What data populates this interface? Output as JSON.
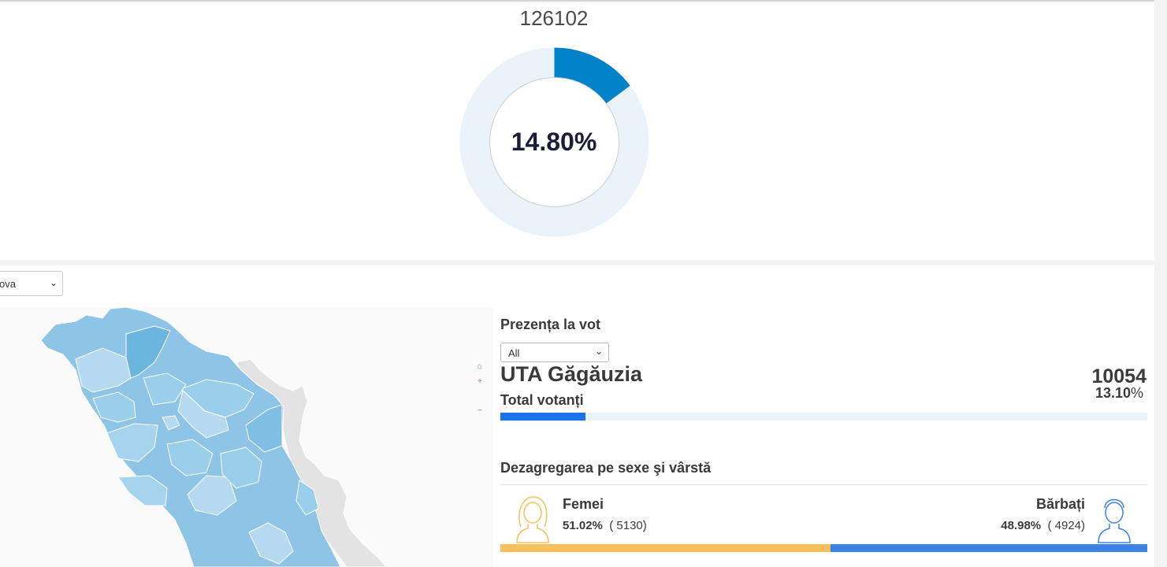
{
  "turnout": {
    "total_count": "126102",
    "percent_label": "14.80%",
    "percent_value": 14.8,
    "colors": {
      "fill": "#0082c8",
      "track": "#eaf2fa"
    }
  },
  "region_selector": {
    "value": "ova"
  },
  "map_controls": {
    "home": "⌂",
    "zoom_in": "+",
    "zoom_out": "−"
  },
  "panel": {
    "title": "Prezența la vot",
    "filter": {
      "selected": "All"
    },
    "region_name": "UTA Găgăuzia",
    "total_label": "Total votanți",
    "total_votes": "10054",
    "total_percent_label": "13.10",
    "total_percent_value": 13.1,
    "percent_sign": "%",
    "section_title": "Dezagregarea pe sexe şi vârstă",
    "female": {
      "label": "Femei",
      "percent": "51.02%",
      "count": "( 5130)",
      "share": 51.02,
      "color": "#f6c05c"
    },
    "male": {
      "label": "Bărbați",
      "percent": "48.98%",
      "count": "( 4924)",
      "share": 48.98,
      "color": "#3b82e6"
    }
  }
}
